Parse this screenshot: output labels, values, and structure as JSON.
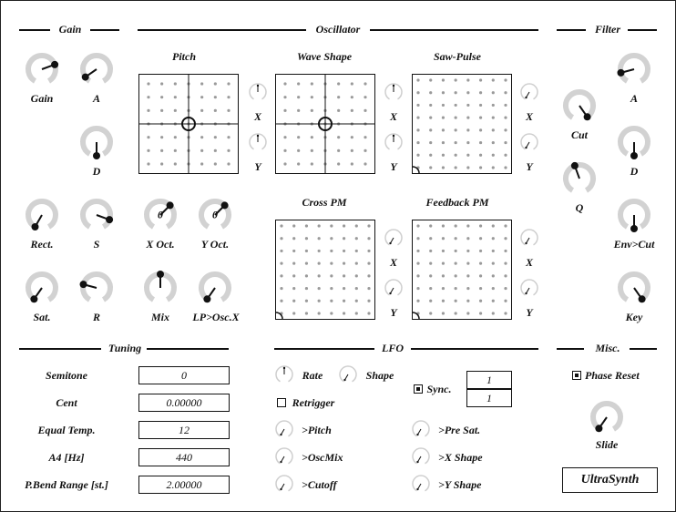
{
  "sections": {
    "gain": "Gain",
    "oscillator": "Oscillator",
    "filter": "Filter",
    "tuning": "Tuning",
    "lfo": "LFO",
    "misc": "Misc."
  },
  "gain_knobs": {
    "gain": "Gain",
    "a": "A",
    "d": "D",
    "rect": "Rect.",
    "s": "S",
    "sat": "Sat.",
    "r": "R"
  },
  "osc_knobs": {
    "x_oct": "X Oct.",
    "x_oct_val": "0",
    "y_oct": "Y Oct.",
    "y_oct_val": "0",
    "mix": "Mix",
    "lp_osc": "LP>Osc.X"
  },
  "pads": {
    "pitch": "Pitch",
    "wave_shape": "Wave Shape",
    "saw_pulse": "Saw-Pulse",
    "cross_pm": "Cross PM",
    "feedback_pm": "Feedback PM",
    "x": "X",
    "y": "Y"
  },
  "filter_knobs": {
    "a": "A",
    "cut": "Cut",
    "d": "D",
    "q": "Q",
    "env_cut": "Env>Cut",
    "key": "Key"
  },
  "tuning": {
    "rows": [
      {
        "label": "Semitone",
        "value": "0"
      },
      {
        "label": "Cent",
        "value": "0.00000"
      },
      {
        "label": "Equal Temp.",
        "value": "12"
      },
      {
        "label": "A4 [Hz]",
        "value": "440"
      },
      {
        "label": "P.Bend Range [st.]",
        "value": "2.00000"
      }
    ]
  },
  "lfo": {
    "rate": "Rate",
    "shape": "Shape",
    "retrigger": "Retrigger",
    "sync": "Sync.",
    "sync_num": "1",
    "sync_den": "1",
    "to_pitch": ">Pitch",
    "to_oscmix": ">OscMix",
    "to_cutoff": ">Cutoff",
    "to_presat": ">Pre Sat.",
    "to_xshape": ">X Shape",
    "to_yshape": ">Y Shape"
  },
  "misc": {
    "phase_reset": "Phase Reset",
    "slide": "Slide",
    "brand": "UltraSynth"
  }
}
